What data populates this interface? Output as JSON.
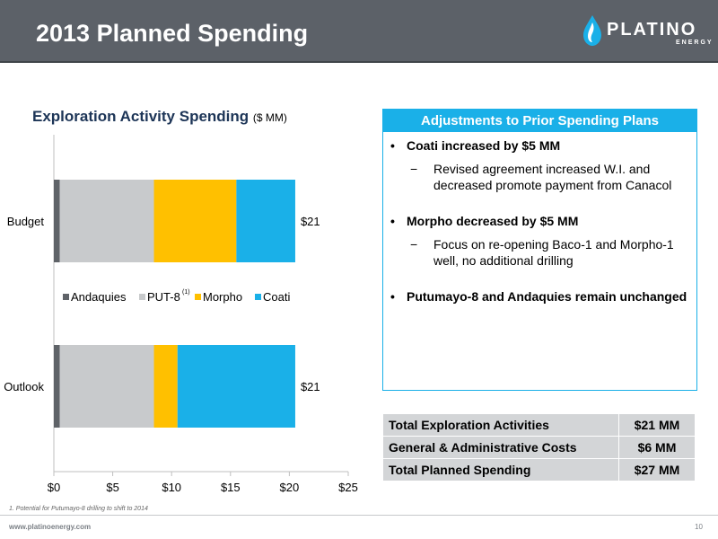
{
  "header": {
    "title": "2013 Planned Spending",
    "logo_text": "PLATINO",
    "logo_subtext": "ENERGY"
  },
  "chart_title": {
    "main": "Exploration Activity Spending",
    "unit": "($ MM)"
  },
  "chart_data": {
    "type": "bar",
    "orientation": "horizontal",
    "stacked": true,
    "categories": [
      "Budget",
      "Outlook"
    ],
    "series": [
      {
        "name": "Andaquies",
        "values": [
          0.5,
          0.5
        ],
        "color": "#5f6368"
      },
      {
        "name": "PUT-8",
        "values": [
          8,
          8
        ],
        "color": "#c8cacc"
      },
      {
        "name": "Morpho",
        "values": [
          7,
          2
        ],
        "color": "#ffc000"
      },
      {
        "name": "Coati",
        "values": [
          5,
          10
        ],
        "color": "#1ab0e8"
      }
    ],
    "legend_superscript": "(1)",
    "total_labels": [
      "$21",
      "$21"
    ],
    "xticks": [
      "$0",
      "$5",
      "$10",
      "$15",
      "$20",
      "$25"
    ],
    "xlim": [
      0,
      25
    ],
    "legend_position": "middle"
  },
  "panel": {
    "heading": "Adjustments to Prior Spending Plans",
    "items": [
      {
        "bullet": "Coati increased by $5 MM",
        "sub": "Revised agreement increased W.I. and decreased promote payment from Canacol"
      },
      {
        "bullet": "Morpho decreased by $5 MM",
        "sub": "Focus on re-opening Baco-1 and Morpho-1 well, no additional drilling"
      },
      {
        "bullet": "Putumayo-8 and Andaquies remain unchanged",
        "sub": ""
      }
    ]
  },
  "summary_table": [
    {
      "label": "Total Exploration Activities",
      "value": "$21 MM"
    },
    {
      "label": "General & Administrative Costs",
      "value": "$6 MM"
    },
    {
      "label": "Total Planned Spending",
      "value": "$27 MM"
    }
  ],
  "footer": {
    "footnote": "1.  Potential for Putumayo-8 drilling to shift to 2014",
    "url": "www.platinoenergy.com",
    "page_number": "10"
  },
  "colors": {
    "header_bg": "#5c6168",
    "accent": "#1ab0e8",
    "table_bg": "#d3d5d7"
  }
}
